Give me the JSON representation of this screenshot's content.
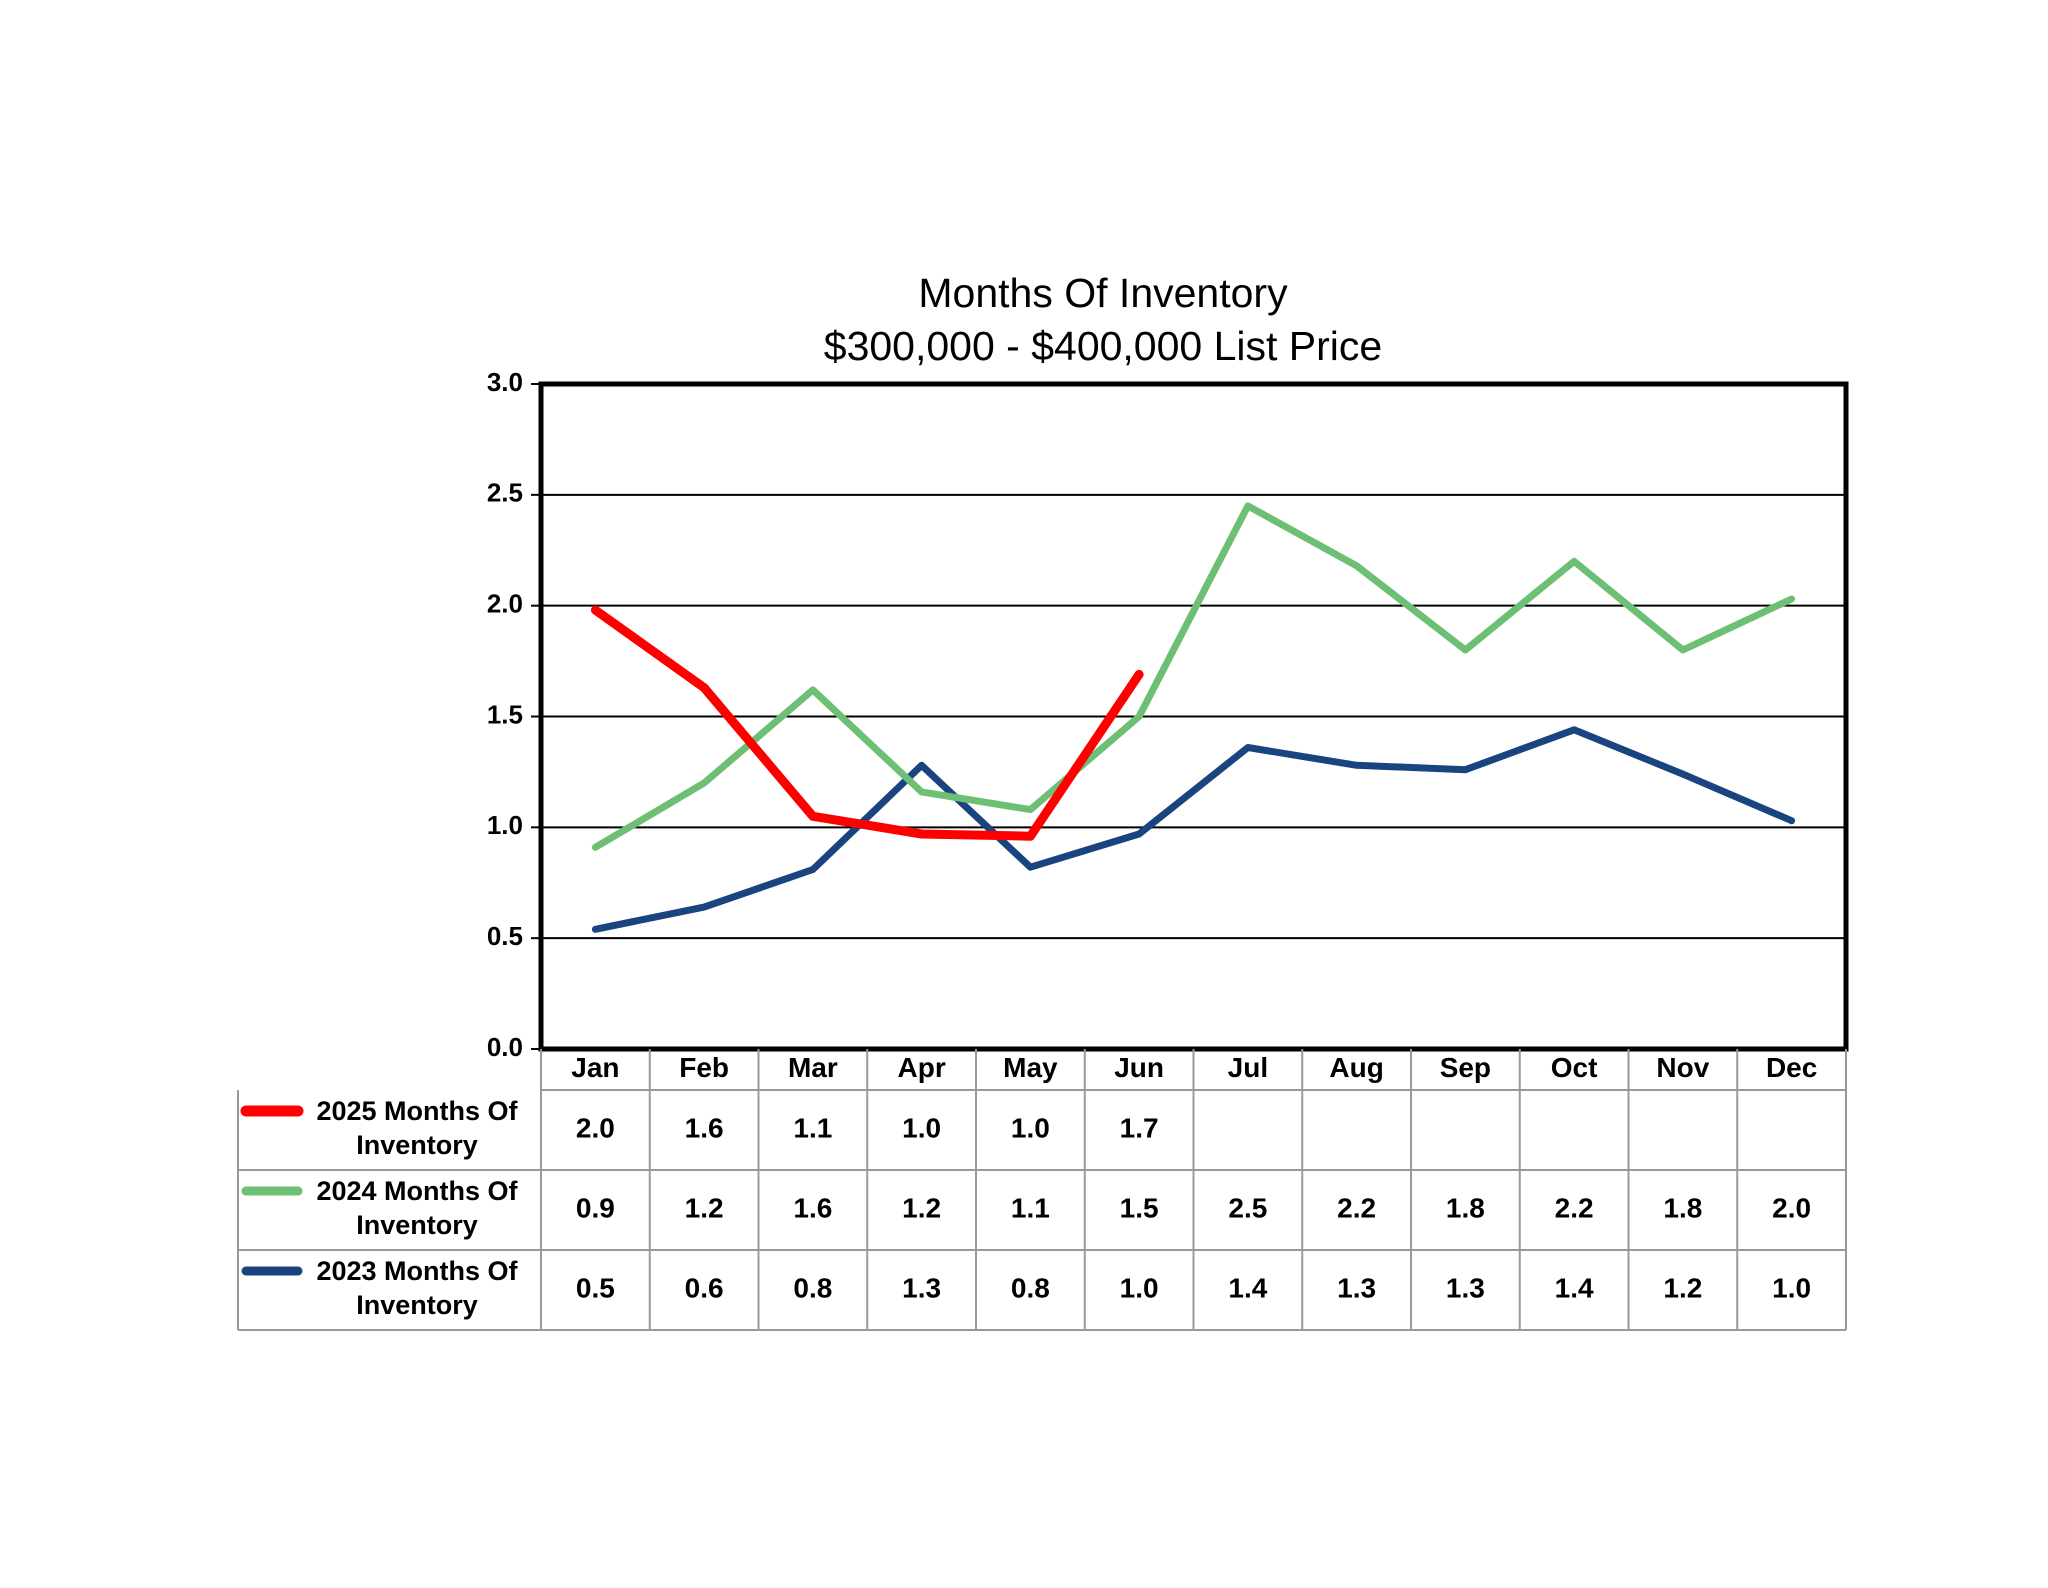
{
  "chart_data": {
    "type": "line",
    "title": "Months Of Inventory",
    "subtitle": "$300,000 - $400,000 List Price",
    "categories": [
      "Jan",
      "Feb",
      "Mar",
      "Apr",
      "May",
      "Jun",
      "Jul",
      "Aug",
      "Sep",
      "Oct",
      "Nov",
      "Dec"
    ],
    "series": [
      {
        "name": "2025 Months Of Inventory",
        "color": "#ff0000",
        "values": [
          1.98,
          1.63,
          1.05,
          0.97,
          0.96,
          1.69,
          null,
          null,
          null,
          null,
          null,
          null
        ],
        "value_labels": [
          "2.0",
          "1.6",
          "1.1",
          "1.0",
          "1.0",
          "1.7",
          null,
          null,
          null,
          null,
          null,
          null
        ]
      },
      {
        "name": "2024 Months Of Inventory",
        "color": "#6dbf73",
        "values": [
          0.91,
          1.2,
          1.62,
          1.16,
          1.08,
          1.5,
          2.45,
          2.18,
          1.8,
          2.2,
          1.8,
          2.03
        ],
        "value_labels": [
          "0.9",
          "1.2",
          "1.6",
          "1.2",
          "1.1",
          "1.5",
          "2.5",
          "2.2",
          "1.8",
          "2.2",
          "1.8",
          "2.0"
        ]
      },
      {
        "name": "2023 Months Of Inventory",
        "color": "#1a4480",
        "values": [
          0.54,
          0.64,
          0.81,
          1.28,
          0.82,
          0.97,
          1.36,
          1.28,
          1.26,
          1.44,
          1.24,
          1.03
        ],
        "value_labels": [
          "0.5",
          "0.6",
          "0.8",
          "1.3",
          "0.8",
          "1.0",
          "1.4",
          "1.3",
          "1.3",
          "1.4",
          "1.2",
          "1.0"
        ]
      }
    ],
    "ylim": [
      0,
      3
    ],
    "yticks": [
      {
        "value": 0,
        "label": "0.0"
      },
      {
        "value": 0.5,
        "label": "0.5"
      },
      {
        "value": 1,
        "label": "1.0"
      },
      {
        "value": 1.5,
        "label": "1.5"
      },
      {
        "value": 2,
        "label": "2.0"
      },
      {
        "value": 2.5,
        "label": "2.5"
      },
      {
        "value": 3,
        "label": "3.0"
      }
    ],
    "grid": true
  }
}
